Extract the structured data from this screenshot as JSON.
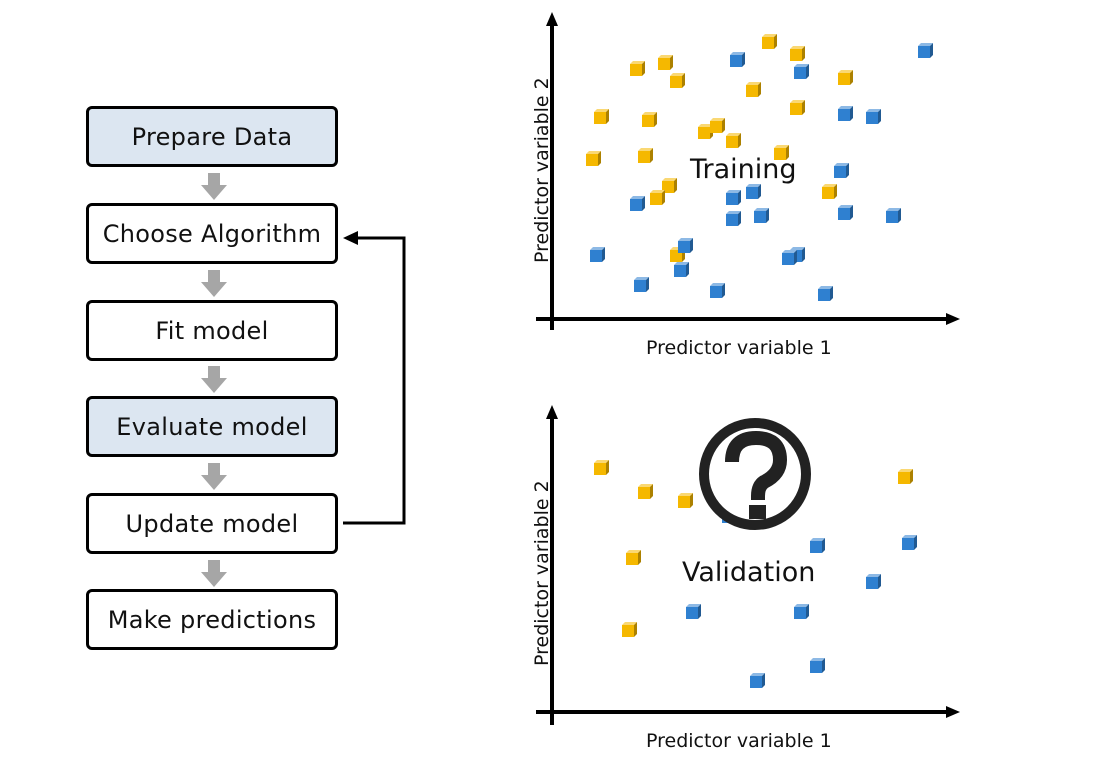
{
  "flowchart": {
    "steps": [
      {
        "label": "Prepare Data",
        "highlighted": true
      },
      {
        "label": "Choose Algorithm",
        "highlighted": false
      },
      {
        "label": "Fit model",
        "highlighted": false
      },
      {
        "label": "Evaluate model",
        "highlighted": true
      },
      {
        "label": "Update model",
        "highlighted": false
      },
      {
        "label": "Make predictions",
        "highlighted": false
      }
    ],
    "loop": {
      "from": "Update model",
      "to": "Choose Algorithm"
    }
  },
  "colors": {
    "highlight": "#dce6f1",
    "class_a": "#f5b800",
    "class_b": "#2f80d0",
    "arrow_gray": "#a6a6a6"
  },
  "training_plot": {
    "label": "Training",
    "xlabel": "Predictor variable 1",
    "ylabel": "Predictor variable 2"
  },
  "validation_plot": {
    "label": "Validation",
    "xlabel": "Predictor variable 1",
    "ylabel": "Predictor variable 2",
    "icon": "question-mark-icon"
  },
  "chart_data": [
    {
      "type": "scatter",
      "title": "Training",
      "xlabel": "Predictor variable 1",
      "ylabel": "Predictor variable 2",
      "xlim": [
        0,
        100
      ],
      "ylim": [
        0,
        100
      ],
      "series": [
        {
          "name": "yellow",
          "color": "#f5b800",
          "x": [
            54,
            61,
            21,
            31,
            28,
            50,
            73,
            12,
            24,
            38,
            61,
            10,
            23,
            41,
            57,
            29,
            45,
            26,
            31,
            69
          ],
          "y": [
            92,
            88,
            83,
            79,
            85,
            76,
            80,
            67,
            66,
            62,
            70,
            53,
            54,
            64,
            55,
            44,
            59,
            40,
            21,
            42
          ]
        },
        {
          "name": "blue",
          "color": "#2f80d0",
          "x": [
            46,
            62,
            93,
            73,
            80,
            72,
            45,
            21,
            50,
            45,
            52,
            73,
            85,
            61,
            33,
            11,
            32,
            59,
            22,
            41,
            68
          ],
          "y": [
            86,
            82,
            89,
            68,
            67,
            49,
            40,
            38,
            42,
            33,
            34,
            35,
            34,
            21,
            24,
            21,
            16,
            20,
            11,
            9,
            8
          ]
        }
      ]
    },
    {
      "type": "scatter",
      "title": "Validation",
      "xlabel": "Predictor variable 1",
      "ylabel": "Predictor variable 2",
      "xlim": [
        0,
        100
      ],
      "ylim": [
        0,
        100
      ],
      "series": [
        {
          "name": "yellow",
          "color": "#f5b800",
          "x": [
            12,
            23,
            33,
            88,
            20,
            19
          ],
          "y": [
            81,
            73,
            70,
            78,
            51,
            27
          ]
        },
        {
          "name": "blue",
          "color": "#2f80d0",
          "x": [
            44,
            66,
            89,
            80,
            35,
            62,
            66,
            51
          ],
          "y": [
            65,
            55,
            56,
            43,
            33,
            33,
            15,
            10
          ]
        }
      ]
    }
  ]
}
